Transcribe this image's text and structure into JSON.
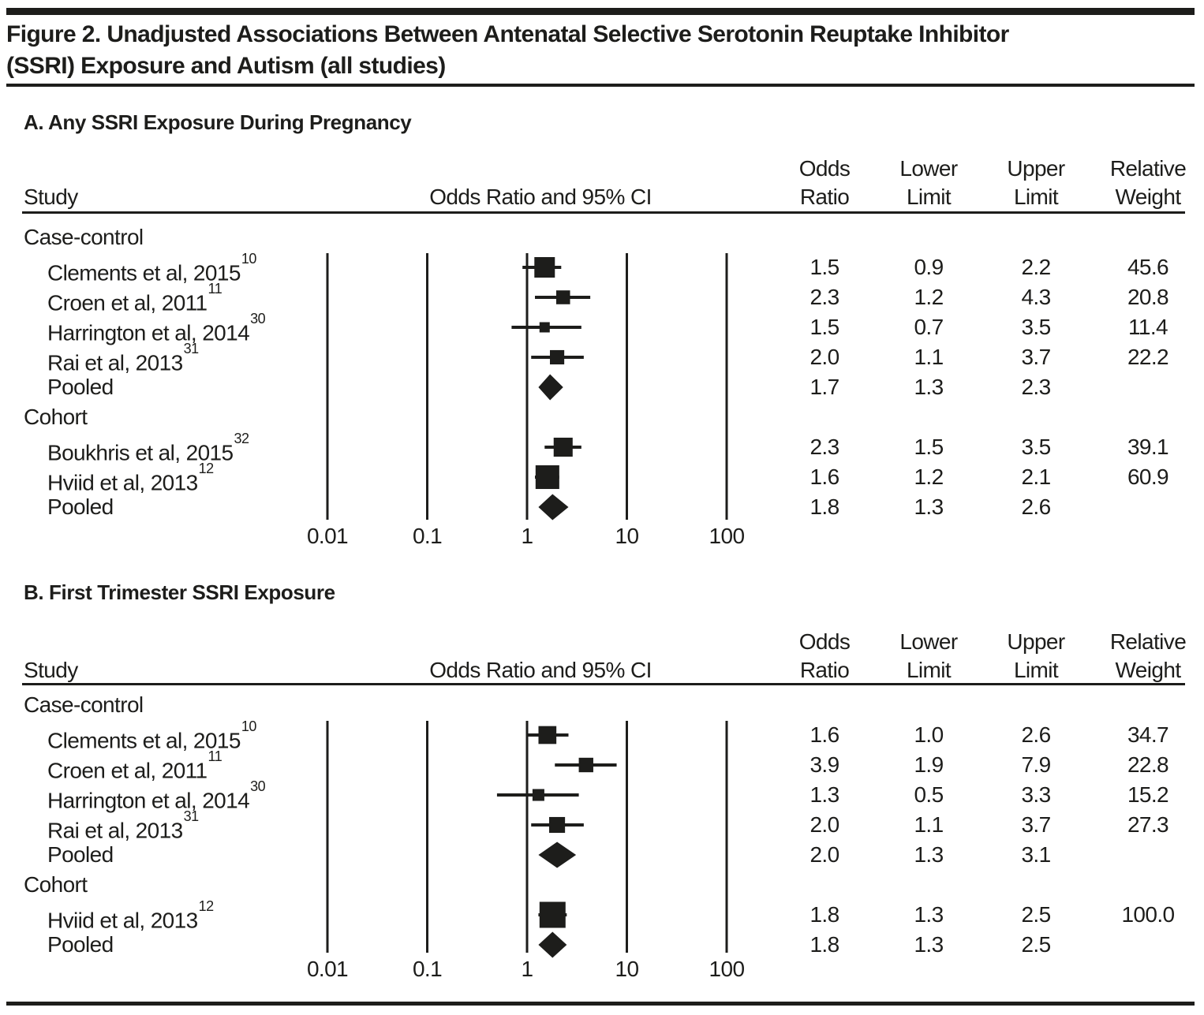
{
  "figure": {
    "title_line1": "Figure 2. Unadjusted Associations Between Antenatal Selective Serotonin Reuptake Inhibitor",
    "title_line2": "(SSRI) Exposure and Autism (all studies)"
  },
  "table_columns": {
    "study": "Study",
    "plot": "Odds Ratio and 95% CI",
    "odds": [
      "Odds",
      "Ratio"
    ],
    "lower": [
      "Lower",
      "Limit"
    ],
    "upper": [
      "Upper",
      "Limit"
    ],
    "weight": [
      "Relative",
      "Weight"
    ]
  },
  "axis_ticks": [
    "0.01",
    "0.1",
    "1",
    "10",
    "100"
  ],
  "chart_data": [
    {
      "type": "forest",
      "panel_label": "A. Any SSRI Exposure During Pregnancy",
      "x_scale": "log10",
      "x_ticks": [
        0.01,
        0.1,
        1,
        10,
        100
      ],
      "xlabel": "Odds Ratio and 95% CI",
      "groups": [
        {
          "name": "Case-control",
          "studies": [
            {
              "label": "Clements et al, 2015",
              "ref": "10",
              "odds_ratio": "1.5",
              "lower": "0.9",
              "upper": "2.2",
              "weight": "45.6"
            },
            {
              "label": "Croen et al, 2011",
              "ref": "11",
              "odds_ratio": "2.3",
              "lower": "1.2",
              "upper": "4.3",
              "weight": "20.8"
            },
            {
              "label": "Harrington et al, 2014",
              "ref": "30",
              "odds_ratio": "1.5",
              "lower": "0.7",
              "upper": "3.5",
              "weight": "11.4"
            },
            {
              "label": "Rai et al, 2013",
              "ref": "31",
              "odds_ratio": "2.0",
              "lower": "1.1",
              "upper": "3.7",
              "weight": "22.2"
            }
          ],
          "pooled": {
            "label": "Pooled",
            "odds_ratio": "1.7",
            "lower": "1.3",
            "upper": "2.3"
          }
        },
        {
          "name": "Cohort",
          "studies": [
            {
              "label": "Boukhris et al, 2015",
              "ref": "32",
              "odds_ratio": "2.3",
              "lower": "1.5",
              "upper": "3.5",
              "weight": "39.1"
            },
            {
              "label": "Hviid et al, 2013",
              "ref": "12",
              "odds_ratio": "1.6",
              "lower": "1.2",
              "upper": "2.1",
              "weight": "60.9"
            }
          ],
          "pooled": {
            "label": "Pooled",
            "odds_ratio": "1.8",
            "lower": "1.3",
            "upper": "2.6"
          }
        }
      ]
    },
    {
      "type": "forest",
      "panel_label": "B. First Trimester SSRI Exposure",
      "x_scale": "log10",
      "x_ticks": [
        0.01,
        0.1,
        1,
        10,
        100
      ],
      "xlabel": "Odds Ratio and 95% CI",
      "groups": [
        {
          "name": "Case-control",
          "studies": [
            {
              "label": "Clements et al, 2015",
              "ref": "10",
              "odds_ratio": "1.6",
              "lower": "1.0",
              "upper": "2.6",
              "weight": "34.7"
            },
            {
              "label": "Croen et al, 2011",
              "ref": "11",
              "odds_ratio": "3.9",
              "lower": "1.9",
              "upper": "7.9",
              "weight": "22.8"
            },
            {
              "label": "Harrington et al, 2014",
              "ref": "30",
              "odds_ratio": "1.3",
              "lower": "0.5",
              "upper": "3.3",
              "weight": "15.2"
            },
            {
              "label": "Rai et al, 2013",
              "ref": "31",
              "odds_ratio": "2.0",
              "lower": "1.1",
              "upper": "3.7",
              "weight": "27.3"
            }
          ],
          "pooled": {
            "label": "Pooled",
            "odds_ratio": "2.0",
            "lower": "1.3",
            "upper": "3.1"
          }
        },
        {
          "name": "Cohort",
          "studies": [
            {
              "label": "Hviid et al, 2013",
              "ref": "12",
              "odds_ratio": "1.8",
              "lower": "1.3",
              "upper": "2.5",
              "weight": "100.0"
            }
          ],
          "pooled": {
            "label": "Pooled",
            "odds_ratio": "1.8",
            "lower": "1.3",
            "upper": "2.5"
          }
        }
      ]
    }
  ]
}
